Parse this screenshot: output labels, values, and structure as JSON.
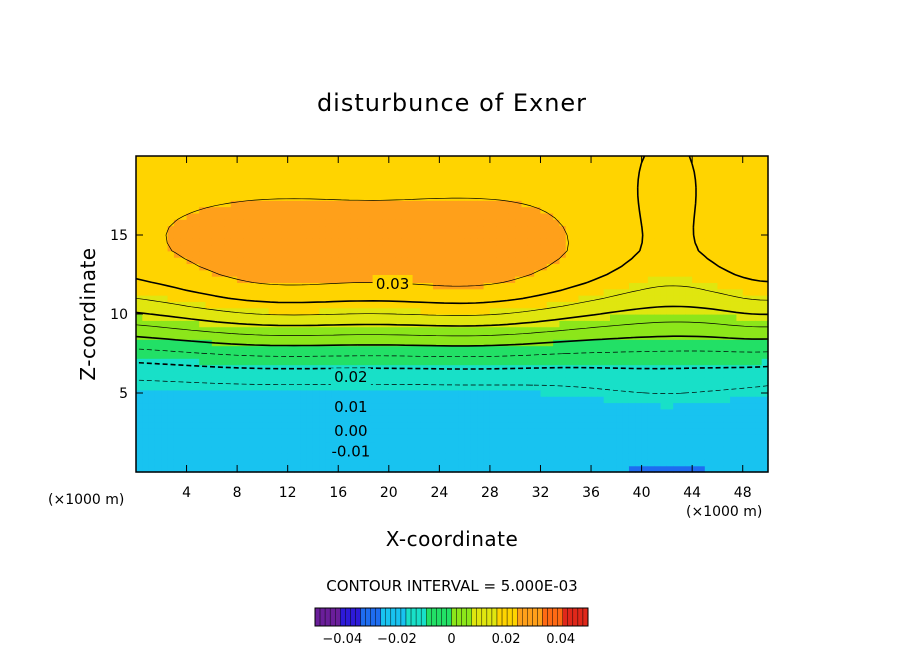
{
  "chart_data": {
    "type": "heatmap",
    "title": "disturbunce of Exner",
    "xlabel": "X-coordinate",
    "ylabel": "Z-coordinate",
    "x_unit": "(×1000 m)",
    "y_unit": "(×1000 m)",
    "xlim": [
      0,
      50
    ],
    "ylim": [
      0,
      20
    ],
    "x_ticks": [
      "4",
      "8",
      "12",
      "16",
      "20",
      "24",
      "28",
      "32",
      "36",
      "40",
      "44",
      "48"
    ],
    "y_ticks": [
      "5",
      "10",
      "15"
    ],
    "contour_interval": "CONTOUR INTERVAL = 5.000E-03",
    "contour_labels": [
      {
        "text": "0.03",
        "x": 20.3,
        "y": 11.9
      },
      {
        "text": "0.02",
        "x": 17.0,
        "y": 6.0
      },
      {
        "text": "0.01",
        "x": 17.0,
        "y": 4.1
      },
      {
        "text": "0.00",
        "x": 17.0,
        "y": 2.6
      },
      {
        "text": "-0.01",
        "x": 17.0,
        "y": 1.3
      }
    ],
    "fields": {
      "base_top": 0.026,
      "base_bottom": -0.024,
      "z_transition": 9.0,
      "lobes": [
        {
          "x": 11.0,
          "z": 11.2,
          "amp": 0.0085,
          "sx": 7.0,
          "sz": 3.0
        },
        {
          "x": 27.0,
          "z": 11.2,
          "amp": 0.0085,
          "sx": 6.5,
          "sz": 3.0
        },
        {
          "x": 42.0,
          "z": 17.0,
          "amp": -0.005,
          "sx": 3.5,
          "sz": 4.0
        },
        {
          "x": 50.0,
          "z": 11.5,
          "amp": 0.003,
          "sx": 3.0,
          "sz": 3.5
        },
        {
          "x": 42.0,
          "z": 4.0,
          "amp": 0.0032,
          "sx": 5.5,
          "sz": 4.0
        },
        {
          "x": 42.0,
          "z": 0.3,
          "amp": -0.004,
          "sx": 5.0,
          "sz": 1.2
        }
      ]
    },
    "colorbar": {
      "range": [
        -0.05,
        0.05
      ],
      "ticks": [
        {
          "value": -0.04,
          "label": "−0.04"
        },
        {
          "value": -0.02,
          "label": "−0.02"
        },
        {
          "value": 0,
          "label": "0"
        },
        {
          "value": 0.02,
          "label": "0.02"
        },
        {
          "value": 0.04,
          "label": "0.04"
        }
      ]
    },
    "colors": [
      "#6a1e9a",
      "#2d1ad9",
      "#1e6cf0",
      "#18c3f0",
      "#18e0c8",
      "#22e066",
      "#8ce61a",
      "#e0e60f",
      "#ffd400",
      "#ffa01a",
      "#ff6a14",
      "#e0281a"
    ]
  }
}
